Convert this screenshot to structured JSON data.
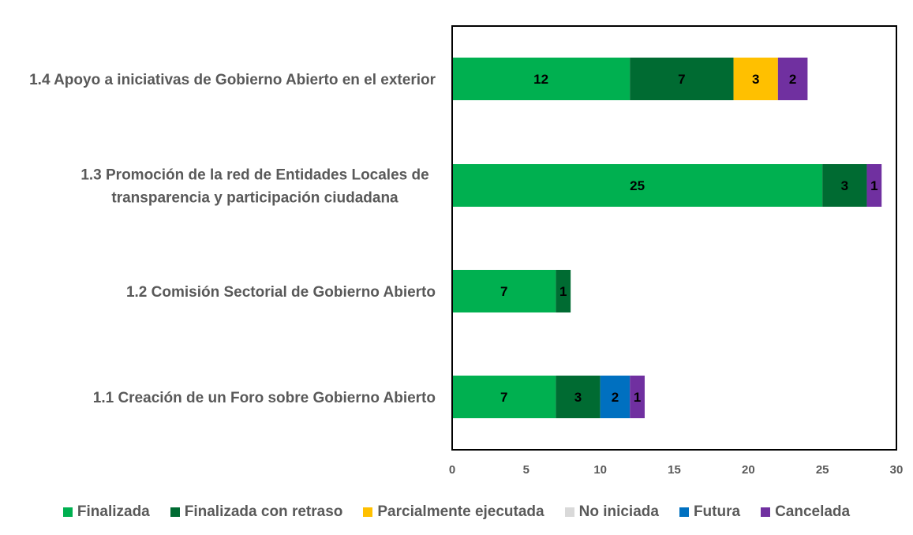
{
  "chart_data": {
    "type": "bar",
    "orientation": "horizontal",
    "stacked": true,
    "categories": [
      "1.4 Apoyo a iniciativas de Gobierno Abierto en el exterior",
      "1.3 Promoción de la red de Entidades Locales de transparencia y participación ciudadana",
      "1.2 Comisión Sectorial de Gobierno Abierto",
      "1.1 Creación de un Foro sobre Gobierno Abierto"
    ],
    "category_lines": [
      [
        "1.4 Apoyo a iniciativas de Gobierno Abierto en el exterior"
      ],
      [
        "1.3 Promoción de la red de Entidades Locales de",
        "transparencia y participación ciudadana"
      ],
      [
        "1.2 Comisión Sectorial de Gobierno Abierto"
      ],
      [
        "1.1 Creación de un Foro sobre Gobierno Abierto"
      ]
    ],
    "series": [
      {
        "name": "Finalizada",
        "color": "#00b050",
        "values": [
          12,
          25,
          7,
          7
        ]
      },
      {
        "name": "Finalizada con retraso",
        "color": "#006b32",
        "values": [
          7,
          3,
          1,
          3
        ]
      },
      {
        "name": "Parcialmente ejecutada",
        "color": "#ffc000",
        "values": [
          3,
          0,
          0,
          0
        ]
      },
      {
        "name": "No iniciada",
        "color": "#d9d9d9",
        "values": [
          0,
          0,
          0,
          0
        ]
      },
      {
        "name": "Futura",
        "color": "#0070c0",
        "values": [
          0,
          0,
          0,
          2
        ]
      },
      {
        "name": "Cancelada",
        "color": "#7030a0",
        "values": [
          2,
          1,
          0,
          1
        ]
      }
    ],
    "xlim": [
      0,
      30
    ],
    "xticks": [
      0,
      5,
      10,
      15,
      20,
      25,
      30
    ],
    "grid": false,
    "legend_position": "bottom",
    "title": "",
    "xlabel": "",
    "ylabel": ""
  }
}
